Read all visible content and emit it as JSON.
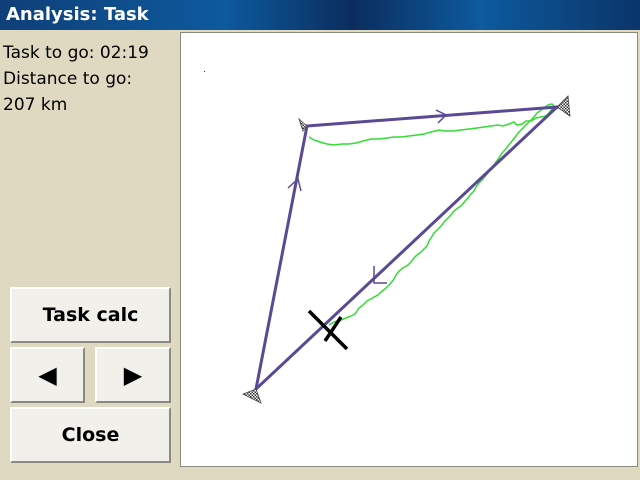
{
  "window": {
    "title": "Analysis: Task"
  },
  "info": {
    "task_to_go": "Task to go: 02:19",
    "distance_label": "Distance to go:",
    "distance_value": "207 km"
  },
  "buttons": {
    "task_calc": "Task calc",
    "prev_icon": "◀",
    "next_icon": "▶",
    "close": "Close"
  },
  "colors": {
    "title_bar": "#0d4f8c",
    "background": "#ded9c0",
    "task_line": "#5a4a94",
    "trace": "#33dd33",
    "aircraft": "#000000"
  },
  "icons": {
    "turnpoint": "turnpoint-sector-icon",
    "leg_direction": "leg-arrow-icon",
    "aircraft": "glider-icon"
  }
}
